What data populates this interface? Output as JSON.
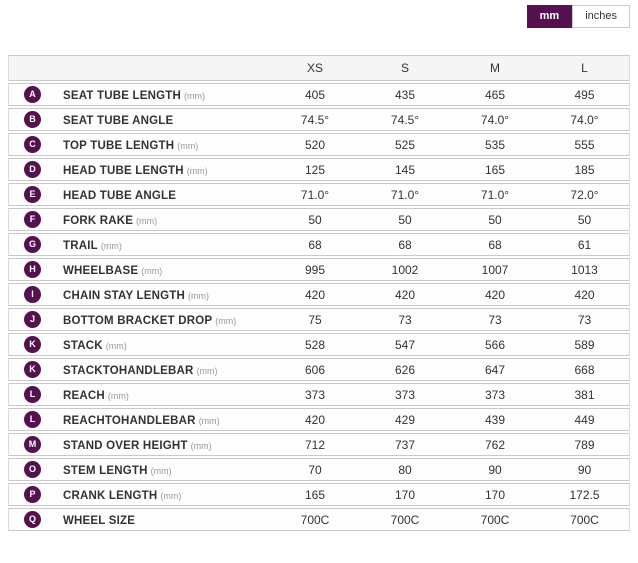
{
  "colors": {
    "accent_purple": "#55114f",
    "row_border": "#c9c9c9",
    "header_bg": "#f5f5f5"
  },
  "unit_toggle": {
    "mm_label": "mm",
    "inches_label": "inches",
    "selected": "mm"
  },
  "table": {
    "columns": [
      "XS",
      "S",
      "M",
      "L"
    ],
    "rows": [
      {
        "badge": "A",
        "name": "SEAT TUBE LENGTH",
        "unit": "(mm)",
        "values": [
          "405",
          "435",
          "465",
          "495"
        ]
      },
      {
        "badge": "B",
        "name": "SEAT TUBE ANGLE",
        "unit": "",
        "values": [
          "74.5°",
          "74.5°",
          "74.0°",
          "74.0°"
        ]
      },
      {
        "badge": "C",
        "name": "TOP TUBE LENGTH",
        "unit": "(mm)",
        "values": [
          "520",
          "525",
          "535",
          "555"
        ]
      },
      {
        "badge": "D",
        "name": "HEAD TUBE LENGTH",
        "unit": "(mm)",
        "values": [
          "125",
          "145",
          "165",
          "185"
        ]
      },
      {
        "badge": "E",
        "name": "HEAD TUBE ANGLE",
        "unit": "",
        "values": [
          "71.0°",
          "71.0°",
          "71.0°",
          "72.0°"
        ]
      },
      {
        "badge": "F",
        "name": "FORK RAKE",
        "unit": "(mm)",
        "values": [
          "50",
          "50",
          "50",
          "50"
        ]
      },
      {
        "badge": "G",
        "name": "TRAIL",
        "unit": "(mm)",
        "values": [
          "68",
          "68",
          "68",
          "61"
        ]
      },
      {
        "badge": "H",
        "name": "WHEELBASE",
        "unit": "(mm)",
        "values": [
          "995",
          "1002",
          "1007",
          "1013"
        ]
      },
      {
        "badge": "I",
        "name": "CHAIN STAY LENGTH",
        "unit": "(mm)",
        "values": [
          "420",
          "420",
          "420",
          "420"
        ]
      },
      {
        "badge": "J",
        "name": "BOTTOM BRACKET DROP",
        "unit": "(mm)",
        "values": [
          "75",
          "73",
          "73",
          "73"
        ]
      },
      {
        "badge": "K",
        "name": "STACK",
        "unit": "(mm)",
        "values": [
          "528",
          "547",
          "566",
          "589"
        ]
      },
      {
        "badge": "K",
        "name": "STACKTOHANDLEBAR",
        "unit": "(mm)",
        "values": [
          "606",
          "626",
          "647",
          "668"
        ]
      },
      {
        "badge": "L",
        "name": "REACH",
        "unit": "(mm)",
        "values": [
          "373",
          "373",
          "373",
          "381"
        ]
      },
      {
        "badge": "L",
        "name": "REACHTOHANDLEBAR",
        "unit": "(mm)",
        "values": [
          "420",
          "429",
          "439",
          "449"
        ]
      },
      {
        "badge": "M",
        "name": "STAND OVER HEIGHT",
        "unit": "(mm)",
        "values": [
          "712",
          "737",
          "762",
          "789"
        ]
      },
      {
        "badge": "O",
        "name": "STEM LENGTH",
        "unit": "(mm)",
        "values": [
          "70",
          "80",
          "90",
          "90"
        ]
      },
      {
        "badge": "P",
        "name": "CRANK LENGTH",
        "unit": "(mm)",
        "values": [
          "165",
          "170",
          "170",
          "172.5"
        ]
      },
      {
        "badge": "Q",
        "name": "WHEEL SIZE",
        "unit": "",
        "values": [
          "700C",
          "700C",
          "700C",
          "700C"
        ]
      }
    ]
  }
}
